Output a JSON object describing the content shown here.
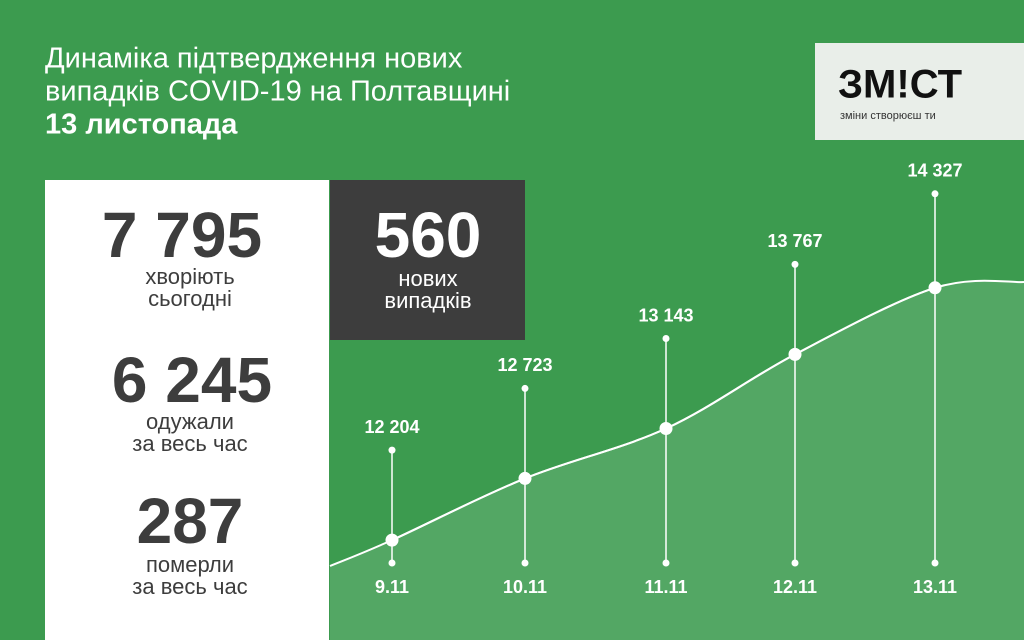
{
  "header": {
    "title_lines": [
      "Динаміка підтвердження нових",
      "випадків COVID-19 на Полтавщині"
    ],
    "date": "13 листопада"
  },
  "logo": {
    "name": "ЗМ!СТ",
    "tagline": "зміни створюєш ти"
  },
  "stats": [
    {
      "value": "7 795",
      "label_lines": [
        "хворіють",
        "сьогодні"
      ]
    },
    {
      "value": "6 245",
      "label_lines": [
        "одужали",
        "за весь час"
      ]
    },
    {
      "value": "287",
      "label_lines": [
        "померли",
        "за весь час"
      ]
    }
  ],
  "new_cases": {
    "value": "560",
    "label_lines": [
      "нових",
      "випадків"
    ]
  },
  "chart_data": {
    "type": "line",
    "categories": [
      "9.11",
      "10.11",
      "11.11",
      "12.11",
      "13.11"
    ],
    "values": [
      12204,
      12723,
      13143,
      13767,
      14327
    ],
    "value_labels": [
      "12 204",
      "12 723",
      "13 143",
      "13 767",
      "14 327"
    ],
    "ylim": [
      11700,
      15150
    ],
    "color": "#ffffff"
  }
}
